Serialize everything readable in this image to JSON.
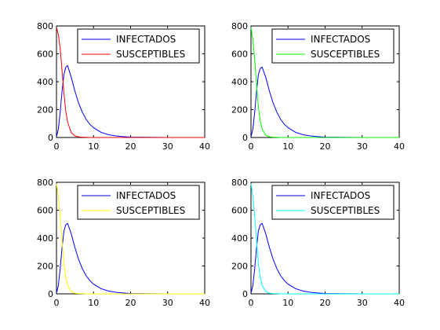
{
  "chart_data": [
    {
      "type": "line",
      "xlim": [
        0,
        40
      ],
      "ylim": [
        0,
        800
      ],
      "x_ticks": [
        0,
        10,
        20,
        30,
        40
      ],
      "y_ticks": [
        0,
        200,
        400,
        600,
        800
      ],
      "grid": false,
      "legend_position": "top-right",
      "x": [
        0,
        0.5,
        1,
        1.5,
        2,
        2.5,
        3,
        4,
        5,
        6,
        7,
        8,
        9,
        10,
        12,
        14,
        16,
        18,
        20,
        25,
        30,
        35,
        40
      ],
      "series": [
        {
          "name": "INFECTADOS",
          "color": "#0000ff",
          "values": [
            5,
            60,
            180,
            330,
            450,
            505,
            515,
            430,
            330,
            245,
            180,
            130,
            95,
            70,
            38,
            20,
            11,
            6,
            3,
            1,
            0,
            0,
            0
          ]
        },
        {
          "name": "SUSCEPTIBLES",
          "color": "#ff0000",
          "values": [
            790,
            740,
            640,
            480,
            320,
            190,
            110,
            35,
            12,
            4,
            2,
            1,
            0,
            0,
            0,
            0,
            0,
            0,
            0,
            0,
            0,
            0,
            0
          ]
        }
      ]
    },
    {
      "type": "line",
      "xlim": [
        0,
        40
      ],
      "ylim": [
        0,
        800
      ],
      "x_ticks": [
        0,
        10,
        20,
        30,
        40
      ],
      "y_ticks": [
        0,
        200,
        400,
        600,
        800
      ],
      "grid": false,
      "legend_position": "top-right",
      "x": [
        0,
        0.5,
        1,
        1.5,
        2,
        2.5,
        3,
        4,
        5,
        6,
        7,
        8,
        9,
        10,
        12,
        14,
        16,
        18,
        20,
        25,
        30,
        35,
        40
      ],
      "series": [
        {
          "name": "INFECTADOS",
          "color": "#0000ff",
          "values": [
            5,
            60,
            180,
            330,
            450,
            495,
            505,
            430,
            330,
            245,
            180,
            130,
            95,
            70,
            38,
            20,
            11,
            6,
            3,
            1,
            0,
            0,
            0
          ]
        },
        {
          "name": "SUSCEPTIBLES",
          "color": "#00ff00",
          "values": [
            790,
            700,
            560,
            380,
            220,
            120,
            60,
            15,
            5,
            2,
            1,
            0,
            0,
            0,
            0,
            0,
            0,
            0,
            0,
            0,
            0,
            0,
            0
          ]
        }
      ]
    },
    {
      "type": "line",
      "xlim": [
        0,
        40
      ],
      "ylim": [
        0,
        800
      ],
      "x_ticks": [
        0,
        10,
        20,
        30,
        40
      ],
      "y_ticks": [
        0,
        200,
        400,
        600,
        800
      ],
      "grid": false,
      "legend_position": "top-right",
      "x": [
        0,
        0.5,
        1,
        1.5,
        2,
        2.5,
        3,
        4,
        5,
        6,
        7,
        8,
        9,
        10,
        12,
        14,
        16,
        18,
        20,
        25,
        30,
        35,
        40
      ],
      "series": [
        {
          "name": "INFECTADOS",
          "color": "#0000ff",
          "values": [
            5,
            60,
            180,
            330,
            450,
            495,
            505,
            430,
            330,
            245,
            180,
            130,
            95,
            70,
            38,
            20,
            11,
            6,
            3,
            1,
            0,
            0,
            0
          ]
        },
        {
          "name": "SUSCEPTIBLES",
          "color": "#ffff00",
          "values": [
            790,
            700,
            560,
            380,
            220,
            120,
            60,
            15,
            5,
            2,
            1,
            0,
            0,
            0,
            0,
            0,
            0,
            0,
            0,
            0,
            0,
            0,
            0
          ]
        }
      ]
    },
    {
      "type": "line",
      "xlim": [
        0,
        40
      ],
      "ylim": [
        0,
        800
      ],
      "x_ticks": [
        0,
        10,
        20,
        30,
        40
      ],
      "y_ticks": [
        0,
        200,
        400,
        600,
        800
      ],
      "grid": false,
      "legend_position": "top-right",
      "x": [
        0,
        0.5,
        1,
        1.5,
        2,
        2.5,
        3,
        4,
        5,
        6,
        7,
        8,
        9,
        10,
        12,
        14,
        16,
        18,
        20,
        25,
        30,
        35,
        40
      ],
      "series": [
        {
          "name": "INFECTADOS",
          "color": "#0000ff",
          "values": [
            5,
            60,
            180,
            330,
            450,
            495,
            505,
            430,
            330,
            245,
            180,
            130,
            95,
            70,
            38,
            20,
            11,
            6,
            3,
            1,
            0,
            0,
            0
          ]
        },
        {
          "name": "SUSCEPTIBLES",
          "color": "#00ffff",
          "values": [
            790,
            700,
            560,
            380,
            220,
            120,
            60,
            15,
            5,
            2,
            1,
            0,
            0,
            0,
            0,
            0,
            0,
            0,
            0,
            0,
            0,
            0,
            0
          ]
        }
      ]
    }
  ]
}
